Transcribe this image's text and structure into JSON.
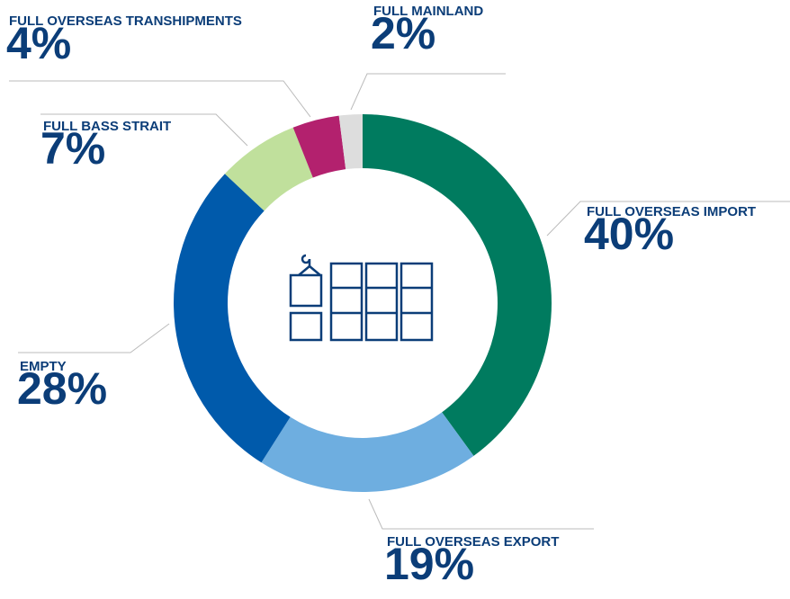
{
  "chart_data": {
    "type": "donut",
    "categories": [
      "FULL OVERSEAS IMPORT",
      "FULL OVERSEAS EXPORT",
      "EMPTY",
      "FULL BASS STRAIT",
      "FULL OVERSEAS TRANSHIPMENTS",
      "FULL MAINLAND"
    ],
    "values": [
      40,
      19,
      28,
      7,
      4,
      2
    ],
    "value_labels": [
      "40%",
      "19%",
      "28%",
      "7%",
      "4%",
      "2%"
    ],
    "colors": [
      "#007b5f",
      "#6eaee0",
      "#005aab",
      "#c0e09c",
      "#b3216e",
      "#dddddd"
    ]
  }
}
